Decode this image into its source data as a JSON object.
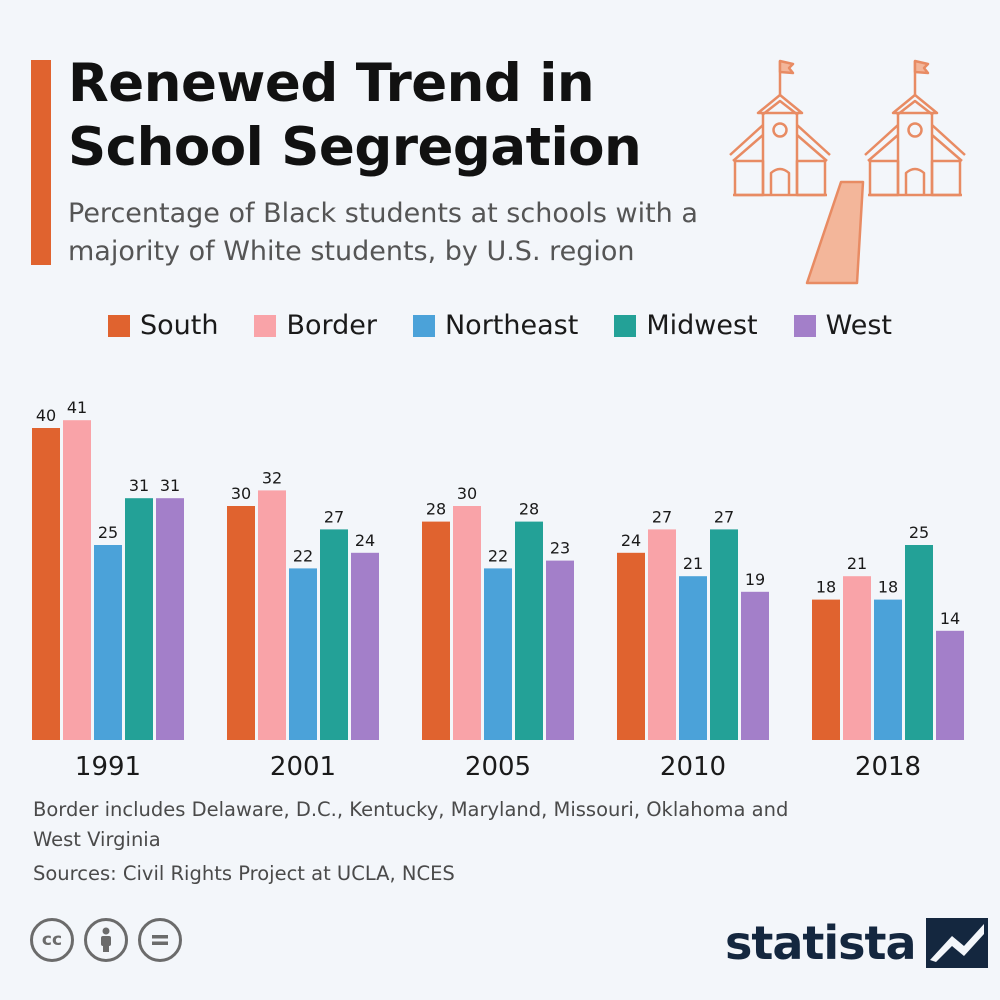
{
  "header": {
    "title_line1": "Renewed Trend in",
    "title_line2": "School Segregation",
    "subtitle": "Percentage of Black students at schools with a majority of White students, by U.S. region"
  },
  "chart_data": {
    "type": "bar",
    "title": "Renewed Trend in School Segregation",
    "subtitle": "Percentage of Black students at schools with a majority of White students, by U.S. region",
    "categories": [
      "1991",
      "2001",
      "2005",
      "2010",
      "2018"
    ],
    "series": [
      {
        "name": "South",
        "color": "#e0632f",
        "values": [
          40,
          30,
          28,
          24,
          18
        ]
      },
      {
        "name": "Border",
        "color": "#f9a3a8",
        "values": [
          41,
          32,
          30,
          27,
          21
        ]
      },
      {
        "name": "Northeast",
        "color": "#4ba2d9",
        "values": [
          25,
          22,
          22,
          21,
          18
        ]
      },
      {
        "name": "Midwest",
        "color": "#23a197",
        "values": [
          31,
          27,
          28,
          27,
          25
        ]
      },
      {
        "name": "West",
        "color": "#a37fc9",
        "values": [
          31,
          24,
          23,
          19,
          14
        ]
      }
    ],
    "xlabel": "",
    "ylabel": "",
    "ylim": [
      0,
      41
    ],
    "legend": "top-center",
    "grid": false
  },
  "notes": {
    "footnote": "Border includes Delaware, D.C., Kentucky, Maryland, Missouri, Oklahoma and West Virginia",
    "source": "Sources: Civil Rights Project at UCLA, NCES"
  },
  "footer": {
    "brand": "statista",
    "license_icons": [
      "cc-icon",
      "by-icon",
      "nd-icon"
    ]
  },
  "colors": {
    "accent": "#e0632f",
    "illustration": "#e88b63",
    "brand": "#14273f"
  }
}
